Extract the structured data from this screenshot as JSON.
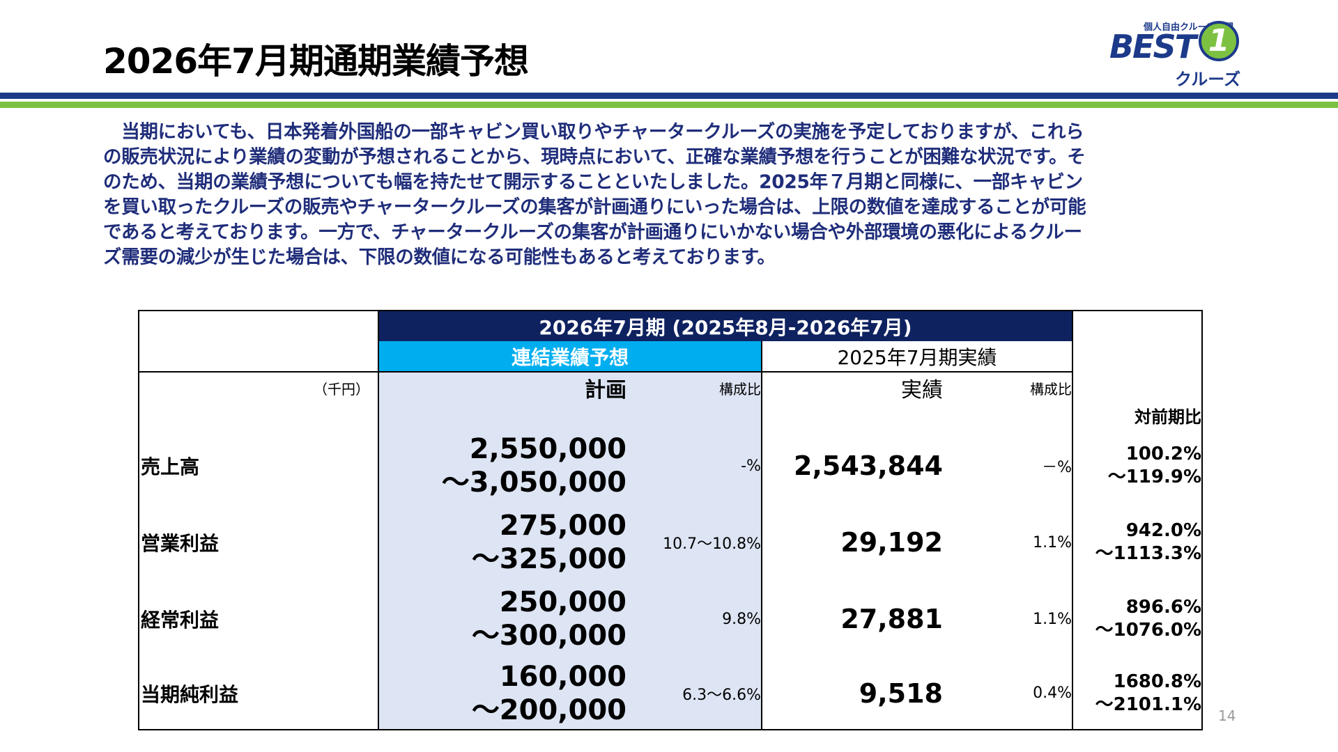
{
  "title": "2026年7月期通期業績予想",
  "logo": {
    "tagline": "個人自由クルーズ専門",
    "best": "BEST",
    "one": "1",
    "cruise": "クルーズ",
    "colors": {
      "navy": "#1d3a8a",
      "green": "#7cc142"
    }
  },
  "paragraph": [
    "　当期においても、日本発着外国船の一部キャビン買い取りやチャータークルーズの実施を予定しておりますが、これら",
    "の販売状況により業績の変動が予想されることから、現時点において、正確な業績予想を行うことが困難な状況です。そ",
    "のため、当期の業績予想についても幅を持たせて開示することといたしました。2025年７月期と同様に、一部キャビン",
    "を買い取ったクルーズの販売やチャータークルーズの集客が計画通りにいった場合は、上限の数値を達成することが可能",
    "であると考えております。一方で、チャータークルーズの集客が計画通りにいかない場合や外部環境の悪化によるクルー",
    "ズ需要の減少が生じた場合は、下限の数値になる可能性もあると考えております。"
  ],
  "table": {
    "period_header": "2026年7月期 (2025年8月-2026年7月)",
    "unit": "（千円）",
    "forecast_header": "連結業績予想",
    "actual_header": "2025年7月期実績",
    "col_plan": "計画",
    "col_ratio": "構成比",
    "col_actual": "実績",
    "col_ratio2": "構成比",
    "col_yoy": "対前期比",
    "rows": [
      {
        "label": "売上高",
        "plan1": "2,550,000",
        "plan2": "～3,050,000",
        "ratio": "-%",
        "actual": "2,543,844",
        "ratio2": "－%",
        "yoy1": "100.2%",
        "yoy2": "～119.9%"
      },
      {
        "label": "営業利益",
        "plan1": "275,000",
        "plan2": "～325,000",
        "ratio": "10.7～10.8%",
        "actual": "29,192",
        "ratio2": "1.1%",
        "yoy1": "942.0%",
        "yoy2": "～1113.3%"
      },
      {
        "label": "経常利益",
        "plan1": "250,000",
        "plan2": "～300,000",
        "ratio": "9.8%",
        "actual": "27,881",
        "ratio2": "1.1%",
        "yoy1": "896.6%",
        "yoy2": "～1076.0%"
      },
      {
        "label": "当期純利益",
        "plan1": "160,000",
        "plan2": "～200,000",
        "ratio": "6.3～6.6%",
        "actual": "9,518",
        "ratio2": "0.4%",
        "yoy1": "1680.8%",
        "yoy2": "～2101.1%"
      }
    ]
  },
  "page_number": "14",
  "colors": {
    "title_bar_blue": "#1d3a8a",
    "title_bar_green": "#7cc142",
    "band_navy": "#0f2260",
    "forecast_cyan": "#00aeef",
    "plan_fill": "#dde5f4",
    "paragraph_text": "#1f2d7a"
  }
}
